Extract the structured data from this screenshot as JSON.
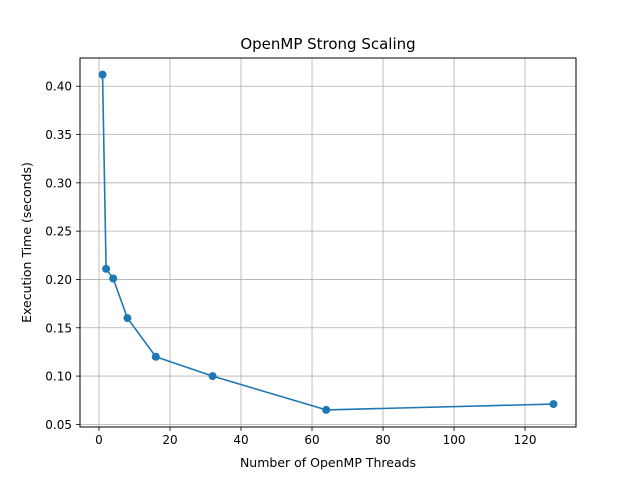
{
  "chart_data": {
    "type": "line",
    "title": "OpenMP Strong Scaling",
    "xlabel": "Number of OpenMP Threads",
    "ylabel": "Execution Time (seconds)",
    "xlim": [
      -5.35,
      134.35
    ],
    "ylim": [
      0.0473,
      0.4292
    ],
    "xticks": [
      0,
      20,
      40,
      60,
      80,
      100,
      120
    ],
    "yticks": [
      0.05,
      0.1,
      0.15,
      0.2,
      0.25,
      0.3,
      0.35,
      0.4
    ],
    "ytick_labels": [
      "0.05",
      "0.10",
      "0.15",
      "0.20",
      "0.25",
      "0.30",
      "0.35",
      "0.40"
    ],
    "grid": true,
    "series": [
      {
        "color": "#1f77b4",
        "x": [
          1,
          2,
          4,
          8,
          16,
          32,
          64,
          128
        ],
        "y": [
          0.412,
          0.211,
          0.201,
          0.16,
          0.12,
          0.1,
          0.065,
          0.071
        ]
      }
    ]
  }
}
